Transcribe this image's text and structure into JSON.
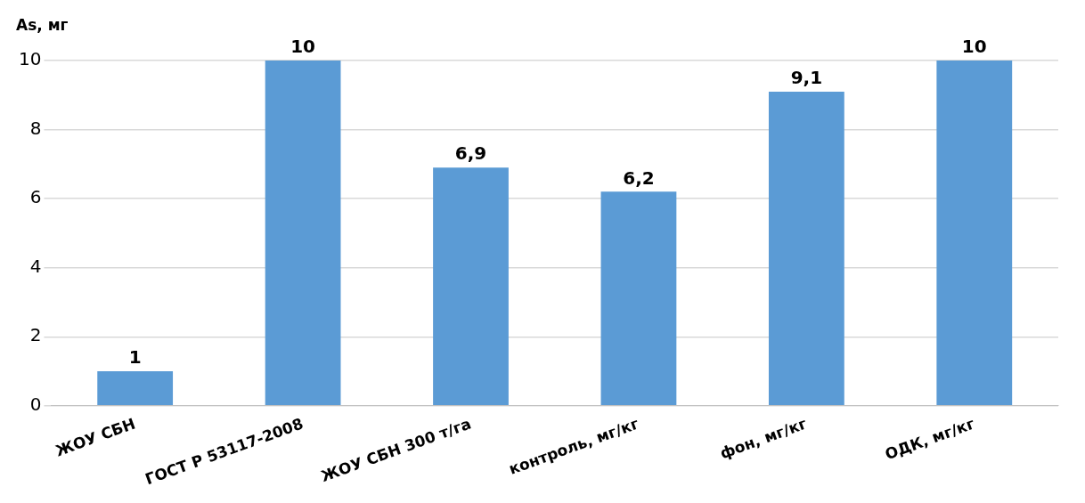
{
  "chart_data": {
    "type": "bar",
    "ylabel": "As, мг",
    "categories": [
      "ЖОУ СБН",
      "ГОСТ Р 53117-2008",
      "ЖОУ СБН 300 т/га",
      "контроль, мг/кг",
      "фон, мг/кг",
      "ОДК, мг/кг"
    ],
    "values": [
      1,
      10,
      6.9,
      6.2,
      9.1,
      10
    ],
    "value_labels": [
      "1",
      "10",
      "6,9",
      "6,2",
      "9,1",
      "10"
    ],
    "color": "#5b9bd5",
    "ylim": [
      0,
      10
    ],
    "yticks": [
      0,
      2,
      4,
      6,
      8,
      10
    ],
    "grid": "y",
    "legend": false
  }
}
